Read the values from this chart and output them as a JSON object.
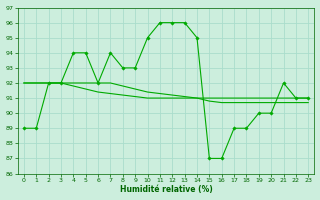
{
  "xlabel": "Humidité relative (%)",
  "xlim": [
    -0.5,
    23.5
  ],
  "ylim": [
    86,
    97
  ],
  "yticks": [
    86,
    87,
    88,
    89,
    90,
    91,
    92,
    93,
    94,
    95,
    96,
    97
  ],
  "xticks": [
    0,
    1,
    2,
    3,
    4,
    5,
    6,
    7,
    8,
    9,
    10,
    11,
    12,
    13,
    14,
    15,
    16,
    17,
    18,
    19,
    20,
    21,
    22,
    23
  ],
  "bg_color": "#cceedd",
  "grid_color": "#aaddcc",
  "line_color": "#00aa00",
  "line1_x": [
    0,
    1,
    2,
    3,
    4,
    5,
    6,
    7,
    8,
    9,
    10,
    11,
    12,
    13,
    14,
    15,
    16,
    17,
    18,
    19,
    20,
    21,
    22,
    23
  ],
  "line1_y": [
    89,
    89,
    92,
    92,
    94,
    94,
    92,
    94,
    93,
    93,
    95,
    96,
    96,
    96,
    95,
    87,
    87,
    89,
    89,
    90,
    90,
    92,
    91,
    91
  ],
  "line2_x": [
    0,
    1,
    2,
    3,
    4,
    5,
    6,
    7,
    8,
    9,
    10,
    11,
    12,
    13,
    14,
    15,
    16,
    17,
    18,
    19,
    20,
    21,
    22,
    23
  ],
  "line2_y": [
    92,
    92,
    92,
    92,
    92,
    92,
    92,
    92,
    91.8,
    91.6,
    91.4,
    91.3,
    91.2,
    91.1,
    91.0,
    91.0,
    91.0,
    91.0,
    91.0,
    91.0,
    91.0,
    91.0,
    91.0,
    91.0
  ],
  "line3_x": [
    0,
    1,
    2,
    3,
    4,
    5,
    6,
    7,
    8,
    9,
    10,
    11,
    12,
    13,
    14,
    15,
    16,
    17,
    18,
    19,
    20,
    21,
    22,
    23
  ],
  "line3_y": [
    92,
    92,
    92,
    92,
    91.8,
    91.6,
    91.4,
    91.3,
    91.2,
    91.1,
    91.0,
    91.0,
    91.0,
    91.0,
    91.0,
    90.8,
    90.7,
    90.7,
    90.7,
    90.7,
    90.7,
    90.7,
    90.7,
    90.7
  ]
}
